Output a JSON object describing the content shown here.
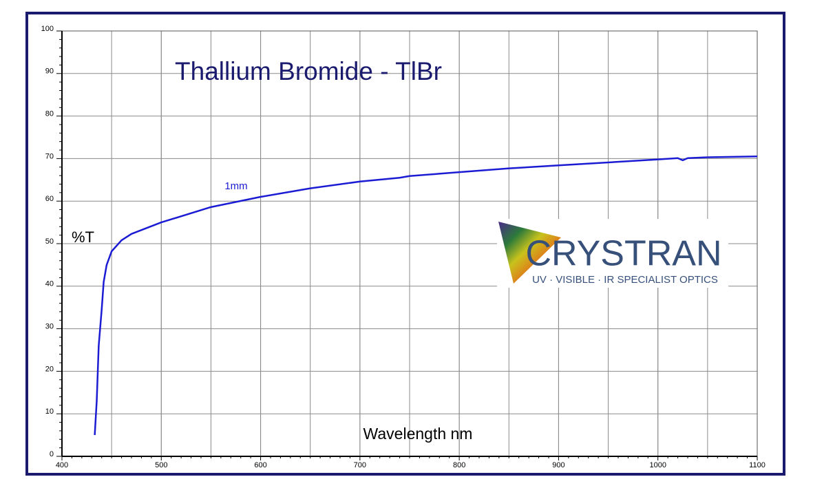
{
  "chart_data": {
    "type": "line",
    "title": "Thallium Bromide - TlBr",
    "xlabel": "Wavelength nm",
    "ylabel": "%T",
    "annotation": "1mm",
    "x": [
      433,
      435,
      437,
      440,
      442,
      445,
      450,
      460,
      470,
      500,
      550,
      600,
      650,
      700,
      740,
      750,
      800,
      850,
      900,
      950,
      1000,
      1020,
      1025,
      1030,
      1050,
      1100
    ],
    "series": [
      {
        "color": "#1b1bd4",
        "values": [
          5,
          13,
          26,
          34.5,
          41,
          45,
          48.2,
          50.8,
          52.3,
          55,
          58.6,
          61,
          63,
          64.6,
          65.5,
          65.9,
          66.8,
          67.7,
          68.4,
          69.1,
          69.8,
          70.1,
          69.6,
          70.1,
          70.3,
          70.5
        ]
      }
    ],
    "xlim": [
      400,
      1100
    ],
    "xticks": [
      400,
      500,
      600,
      700,
      800,
      900,
      1000,
      1100
    ],
    "x_grid_step": 50,
    "ylim": [
      0,
      100
    ],
    "yticks": [
      0,
      10,
      20,
      30,
      40,
      50,
      60,
      70,
      80,
      90,
      100
    ],
    "grid": true
  },
  "logo": {
    "name": "CRYSTRAN",
    "tagline": "UV · VISIBLE · IR SPECIALIST OPTICS"
  }
}
